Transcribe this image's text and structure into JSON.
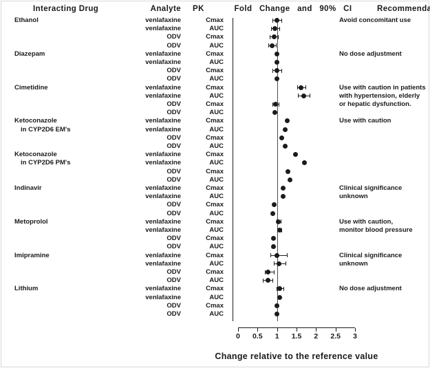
{
  "title_row": {
    "interacting_drug": "Interacting Drug",
    "analyte": "Analyte",
    "pk": "PK",
    "fold_change": "Fold Change and 90% CI",
    "recommendation": "Recommendation"
  },
  "axis": {
    "title": "Change relative to the reference value",
    "tick_labels": [
      "0",
      "0.5",
      "1",
      "1.5",
      "2",
      "2.5",
      "3"
    ],
    "tick_values": [
      0,
      0.5,
      1,
      1.5,
      2,
      2.5,
      3
    ],
    "min": 0,
    "max": 3,
    "reference_value": 1
  },
  "colors": {
    "marker": "#1b1b1b",
    "text": "#1a1a1a",
    "reference_line": "#4a4a4a",
    "frame_border": "#d9d9d9"
  },
  "chart_data": {
    "type": "scatter",
    "subtype": "forest-plot",
    "title": "PK Fold Change and 90% CI",
    "xlabel": "Change relative to the reference value",
    "xlim": [
      0,
      3
    ],
    "reference_line": 1,
    "grid": false,
    "legend": "none",
    "groups": [
      {
        "drug_lines": [
          "Ethanol"
        ],
        "recommendation_lines": [
          "Avoid concomitant use"
        ],
        "rows": [
          {
            "analyte": "venlafaxine",
            "pk": "Cmax",
            "value": 1.0,
            "ci90": [
              0.89,
              1.12
            ]
          },
          {
            "analyte": "venlafaxine",
            "pk": "AUC",
            "value": 0.95,
            "ci90": [
              0.84,
              1.06
            ]
          },
          {
            "analyte": "ODV",
            "pk": "Cmax",
            "value": 0.92,
            "ci90": [
              0.82,
              1.02
            ]
          },
          {
            "analyte": "ODV",
            "pk": "AUC",
            "value": 0.87,
            "ci90": [
              0.77,
              0.97
            ]
          }
        ]
      },
      {
        "drug_lines": [
          "Diazepam"
        ],
        "recommendation_lines": [
          "No dose adjustment"
        ],
        "rows": [
          {
            "analyte": "venlafaxine",
            "pk": "Cmax",
            "value": 1.0,
            "ci90": null
          },
          {
            "analyte": "venlafaxine",
            "pk": "AUC",
            "value": 1.0,
            "ci90": null
          },
          {
            "analyte": "ODV",
            "pk": "Cmax",
            "value": 1.0,
            "ci90": [
              0.88,
              1.12
            ]
          },
          {
            "analyte": "ODV",
            "pk": "AUC",
            "value": 1.0,
            "ci90": null
          }
        ]
      },
      {
        "drug_lines": [
          "Cimetidine"
        ],
        "recommendation_lines": [
          "Use with caution in patients",
          "with hypertension, elderly",
          "or hepatic dysfunction."
        ],
        "rows": [
          {
            "analyte": "venlafaxine",
            "pk": "Cmax",
            "value": 1.62,
            "ci90": [
              1.52,
              1.73
            ]
          },
          {
            "analyte": "venlafaxine",
            "pk": "AUC",
            "value": 1.68,
            "ci90": [
              1.54,
              1.83
            ]
          },
          {
            "analyte": "ODV",
            "pk": "Cmax",
            "value": 0.97,
            "ci90": [
              0.89,
              1.05
            ]
          },
          {
            "analyte": "ODV",
            "pk": "AUC",
            "value": 0.95,
            "ci90": null
          }
        ]
      },
      {
        "drug_lines": [
          "Ketoconazole",
          "in CYP2D6 EM's"
        ],
        "recommendation_lines": [
          "Use with caution"
        ],
        "rows": [
          {
            "analyte": "venlafaxine",
            "pk": "Cmax",
            "value": 1.26,
            "ci90": null
          },
          {
            "analyte": "venlafaxine",
            "pk": "AUC",
            "value": 1.21,
            "ci90": null
          },
          {
            "analyte": "ODV",
            "pk": "Cmax",
            "value": 1.12,
            "ci90": null
          },
          {
            "analyte": "ODV",
            "pk": "AUC",
            "value": 1.21,
            "ci90": null
          }
        ]
      },
      {
        "drug_lines": [
          "Ketoconazole",
          "in CYP2D6 PM's"
        ],
        "recommendation_lines": [],
        "rows": [
          {
            "analyte": "venlafaxine",
            "pk": "Cmax",
            "value": 1.48,
            "ci90": null
          },
          {
            "analyte": "venlafaxine",
            "pk": "AUC",
            "value": 1.7,
            "ci90": null
          },
          {
            "analyte": "ODV",
            "pk": "Cmax",
            "value": 1.28,
            "ci90": null
          },
          {
            "analyte": "ODV",
            "pk": "AUC",
            "value": 1.33,
            "ci90": null
          }
        ]
      },
      {
        "drug_lines": [
          "Indinavir"
        ],
        "recommendation_lines": [
          "Clinical significance",
          "unknown"
        ],
        "rows": [
          {
            "analyte": "venlafaxine",
            "pk": "Cmax",
            "value": 1.15,
            "ci90": null
          },
          {
            "analyte": "venlafaxine",
            "pk": "AUC",
            "value": 1.15,
            "ci90": null
          },
          {
            "analyte": "ODV",
            "pk": "Cmax",
            "value": 0.93,
            "ci90": null
          },
          {
            "analyte": "ODV",
            "pk": "AUC",
            "value": 0.9,
            "ci90": null
          }
        ]
      },
      {
        "drug_lines": [
          "Metoprolol"
        ],
        "recommendation_lines": [
          "Use with caution,",
          "monitor blood pressure"
        ],
        "rows": [
          {
            "analyte": "venlafaxine",
            "pk": "Cmax",
            "value": 1.04,
            "ci90": [
              0.98,
              1.1
            ]
          },
          {
            "analyte": "venlafaxine",
            "pk": "AUC",
            "value": 1.06,
            "ci90": [
              1.0,
              1.12
            ]
          },
          {
            "analyte": "ODV",
            "pk": "Cmax",
            "value": 0.91,
            "ci90": null
          },
          {
            "analyte": "ODV",
            "pk": "AUC",
            "value": 0.91,
            "ci90": null
          }
        ]
      },
      {
        "drug_lines": [
          "Imipramine"
        ],
        "recommendation_lines": [
          "Clinical significance",
          "unknown"
        ],
        "rows": [
          {
            "analyte": "venlafaxine",
            "pk": "Cmax",
            "value": 1.0,
            "ci90": [
              0.83,
              1.25
            ]
          },
          {
            "analyte": "venlafaxine",
            "pk": "AUC",
            "value": 1.05,
            "ci90": [
              0.92,
              1.22
            ]
          },
          {
            "analyte": "ODV",
            "pk": "Cmax",
            "value": 0.77,
            "ci90": [
              0.68,
              0.91
            ]
          },
          {
            "analyte": "ODV",
            "pk": "AUC",
            "value": 0.76,
            "ci90": [
              0.64,
              0.88
            ]
          }
        ]
      },
      {
        "drug_lines": [
          "Lithium"
        ],
        "recommendation_lines": [
          "No dose adjustment"
        ],
        "rows": [
          {
            "analyte": "venlafaxine",
            "pk": "Cmax",
            "value": 1.07,
            "ci90": [
              0.99,
              1.16
            ]
          },
          {
            "analyte": "venlafaxine",
            "pk": "AUC",
            "value": 1.06,
            "ci90": null
          },
          {
            "analyte": "ODV",
            "pk": "Cmax",
            "value": 0.99,
            "ci90": null
          },
          {
            "analyte": "ODV",
            "pk": "AUC",
            "value": 1.0,
            "ci90": null
          }
        ]
      }
    ]
  }
}
